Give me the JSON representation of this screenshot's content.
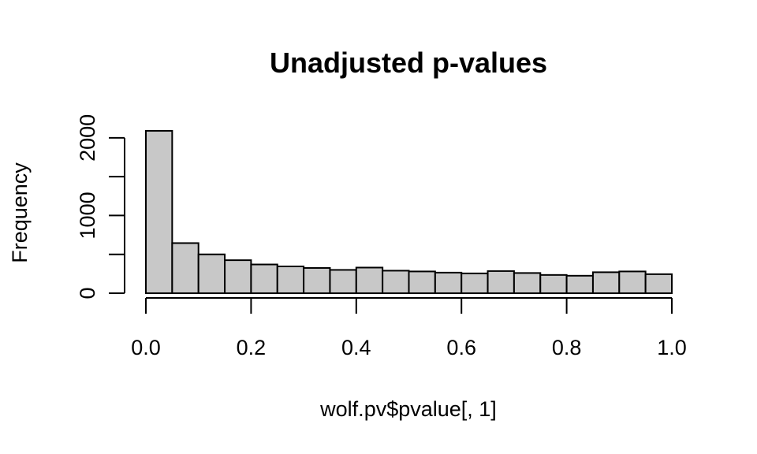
{
  "chart_data": {
    "type": "bar",
    "title": "Unadjusted p-values",
    "xlabel": "wolf.pv$pvalue[, 1]",
    "ylabel": "Frequency",
    "bin_edges": [
      0.0,
      0.05,
      0.1,
      0.15,
      0.2,
      0.25,
      0.3,
      0.35,
      0.4,
      0.45,
      0.5,
      0.55,
      0.6,
      0.65,
      0.7,
      0.75,
      0.8,
      0.85,
      0.9,
      0.95,
      1.0
    ],
    "values": [
      2090,
      645,
      500,
      425,
      370,
      345,
      325,
      300,
      330,
      290,
      280,
      265,
      255,
      285,
      260,
      235,
      225,
      270,
      280,
      245
    ],
    "xlim": [
      0,
      1
    ],
    "ylim": [
      0,
      2090
    ],
    "x_ticks": [
      0.0,
      0.2,
      0.4,
      0.6,
      0.8,
      1.0
    ],
    "x_tick_labels": [
      "0.0",
      "0.2",
      "0.4",
      "0.6",
      "0.8",
      "1.0"
    ],
    "y_ticks": [
      0,
      500,
      1000,
      1500,
      2000
    ],
    "y_tick_labels": [
      "0",
      "",
      "1000",
      "",
      "2000"
    ],
    "grid": false,
    "colors": {
      "bar_fill": "#c8c8c8",
      "bar_stroke": "#000000"
    }
  }
}
